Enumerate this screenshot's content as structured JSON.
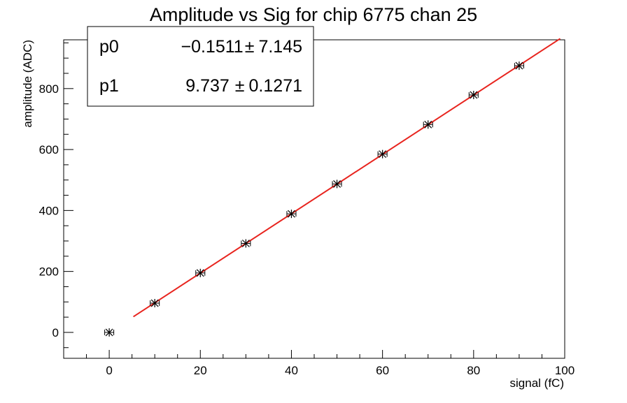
{
  "chart_data": {
    "type": "scatter",
    "title": "Amplitude vs Sig for chip 6775 chan 25",
    "xlabel": "signal (fC)",
    "ylabel": "amplitude (ADC)",
    "xlim": [
      -10,
      100
    ],
    "ylim": [
      -85,
      960
    ],
    "x_ticks": [
      0,
      20,
      40,
      60,
      80,
      100
    ],
    "y_ticks": [
      0,
      200,
      400,
      600,
      800
    ],
    "grid": false,
    "legend": "none",
    "series": [
      {
        "x": [
          0,
          10,
          20,
          30,
          40,
          50,
          60,
          70,
          80,
          90
        ],
        "y": [
          0,
          96,
          195,
          292,
          389,
          487,
          585,
          682,
          779,
          875
        ],
        "x_err": 1,
        "marker_color": "#000000"
      }
    ],
    "fit": {
      "x_range": [
        5.3,
        99
      ],
      "p0": -0.1511,
      "p1": 9.737,
      "color": "#e8241e"
    },
    "stats_box": {
      "position": "top-left",
      "rows": [
        {
          "name": "p0",
          "value": "−0.1511",
          "sep": "±",
          "error": "7.145"
        },
        {
          "name": "p1",
          "value": "9.737",
          "sep": "±",
          "error": "0.1271"
        }
      ]
    }
  }
}
